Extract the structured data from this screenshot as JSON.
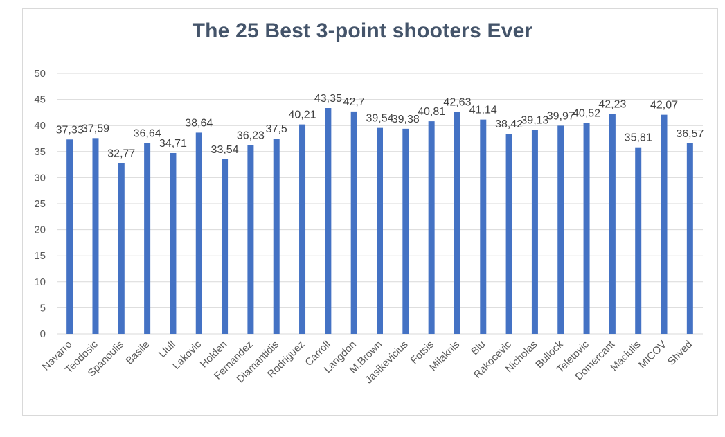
{
  "chart_data": {
    "type": "bar",
    "title": "The 25 Best 3-point shooters Ever",
    "categories": [
      "Navarro",
      "Teodosic",
      "Spanoulis",
      "Basile",
      "Llull",
      "Lakovic",
      "Holden",
      "Fernandez",
      "Diamantidis",
      "Rodriguez",
      "Carroll",
      "Langdon",
      "M.Brown",
      "Jasikevicius",
      "Fotsis",
      "Milaknis",
      "Blu",
      "Rakocevic",
      "Nicholas",
      "Bullock",
      "Teletovic",
      "Domercant",
      "Maciulis",
      "MICOV",
      "Shved"
    ],
    "values": [
      37.33,
      37.59,
      32.77,
      36.64,
      34.71,
      38.64,
      33.54,
      36.23,
      37.5,
      40.21,
      43.35,
      42.7,
      39.54,
      39.38,
      40.81,
      42.63,
      41.14,
      38.42,
      39.13,
      39.97,
      40.52,
      42.23,
      35.81,
      42.07,
      36.57
    ],
    "data_labels": [
      "37,33",
      "37,59",
      "32,77",
      "36,64",
      "34,71",
      "38,64",
      "33,54",
      "36,23",
      "37,5",
      "40,21",
      "43,35",
      "42,7",
      "39,54",
      "39,38",
      "40,81",
      "42,63",
      "41,14",
      "38,42",
      "39,13",
      "39,97",
      "40,52",
      "42,23",
      "35,81",
      "42,07",
      "36,57"
    ],
    "y_ticks": [
      "0",
      "5",
      "10",
      "15",
      "20",
      "25",
      "30",
      "35",
      "40",
      "45",
      "50"
    ],
    "ylim": [
      0,
      50
    ],
    "xlabel": "",
    "ylabel": "",
    "grid": true,
    "legend": "none",
    "bar_color": "#4472c4",
    "grid_color": "#d9d9d9"
  }
}
